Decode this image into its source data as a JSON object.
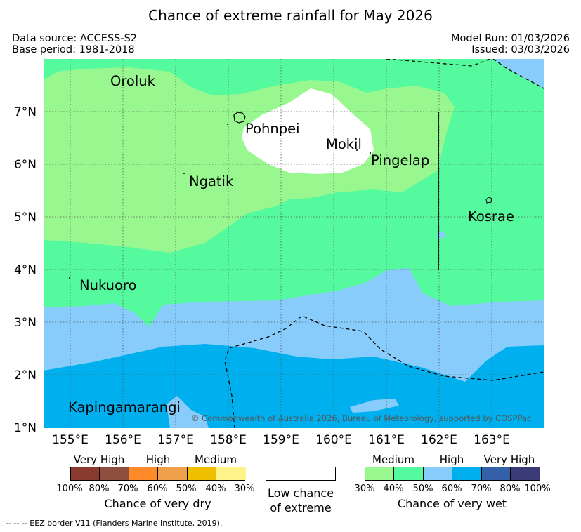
{
  "header": {
    "title": "Chance of extreme rainfall for May 2026",
    "data_source": "Data source: ACCESS-S2",
    "base_period": "Base period: 1981-2018",
    "model_run": "Model Run: 01/03/2026",
    "issued": "Issued: 03/03/2026"
  },
  "axes": {
    "x_ticks": [
      "155°E",
      "156°E",
      "157°E",
      "158°E",
      "159°E",
      "160°E",
      "161°E",
      "162°E",
      "163°E"
    ],
    "y_ticks": [
      "7°N",
      "6°N",
      "5°N",
      "4°N",
      "3°N",
      "2°N",
      "1°N"
    ],
    "x_range_deg": [
      154.5,
      164.0
    ],
    "y_range_deg": [
      1.0,
      8.0
    ]
  },
  "places": [
    "Oroluk",
    "Pohnpei",
    "Mokil",
    "Pingelap",
    "Ngatik",
    "Kosrae",
    "Nukuoro",
    "Kapingamarangi"
  ],
  "copyright": "© Commonwealth of Australia 2026, Bureau of Meteorology, supported by COSPPac",
  "legend": {
    "dry": {
      "categories": [
        "Very High",
        "High",
        "Medium"
      ],
      "percents": [
        "100%",
        "80%",
        "70%",
        "60%",
        "50%",
        "40%",
        "30%"
      ],
      "colors": [
        "#8b3a30",
        "#8f4f3e",
        "#ff8a2a",
        "#f0a04a",
        "#f0c000",
        "#fff48a"
      ],
      "title": "Chance of very dry"
    },
    "low": {
      "line1": "Low chance",
      "line2": "of extreme"
    },
    "wet": {
      "categories": [
        "Medium",
        "High",
        "Very High"
      ],
      "percents": [
        "30%",
        "40%",
        "50%",
        "60%",
        "70%",
        "80%",
        "100%"
      ],
      "colors": [
        "#98f88f",
        "#55f99e",
        "#88ccfb",
        "#00b0ee",
        "#3360a6",
        "#3b3b78"
      ],
      "title": "Chance of very wet"
    }
  },
  "map_colors": {
    "medium": "#98f88f",
    "high": "#55f99e",
    "low": "#ffffff",
    "wet60": "#88ccfb",
    "wet70": "#00b0ee",
    "grid": "#555555"
  },
  "footnote": "--  --  -- EEZ border V11 (Flanders Marine Institute, 2019)."
}
